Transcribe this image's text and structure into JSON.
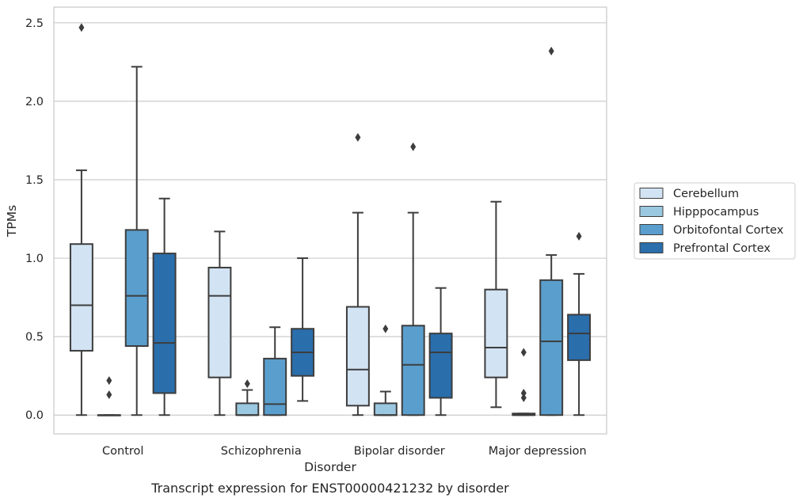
{
  "chart_data": {
    "type": "box",
    "xlabel": "Disorder",
    "ylabel": "TPMs",
    "caption": "Transcript expression for ENST00000421232 by disorder",
    "categories": [
      "Control",
      "Schizophrenia",
      "Bipolar disorder",
      "Major depression"
    ],
    "ylim": [
      -0.12,
      2.6
    ],
    "yticks": [
      0.0,
      0.5,
      1.0,
      1.5,
      2.0,
      2.5
    ],
    "ytick_labels": [
      "0.0",
      "0.5",
      "1.0",
      "1.5",
      "2.0",
      "2.5"
    ],
    "grid": "horizontal",
    "legend_position": "center-right",
    "series": [
      {
        "name": "Cerebellum",
        "color": "#d2e3f3",
        "boxes": [
          {
            "whisker_low": 0.0,
            "q1": 0.41,
            "median": 0.7,
            "q3": 1.09,
            "whisker_high": 1.56,
            "outliers": [
              2.47
            ]
          },
          {
            "whisker_low": 0.0,
            "q1": 0.24,
            "median": 0.76,
            "q3": 0.94,
            "whisker_high": 1.17,
            "outliers": []
          },
          {
            "whisker_low": 0.0,
            "q1": 0.06,
            "median": 0.29,
            "q3": 0.69,
            "whisker_high": 1.29,
            "outliers": [
              1.77
            ]
          },
          {
            "whisker_low": 0.05,
            "q1": 0.24,
            "median": 0.43,
            "q3": 0.8,
            "whisker_high": 1.36,
            "outliers": []
          }
        ]
      },
      {
        "name": "Hipppocampus",
        "color": "#9ac8e0",
        "boxes": [
          {
            "whisker_low": 0.0,
            "q1": 0.0,
            "median": 0.0,
            "q3": 0.0,
            "whisker_high": 0.0,
            "outliers": [
              0.13,
              0.22
            ]
          },
          {
            "whisker_low": 0.0,
            "q1": 0.0,
            "median": 0.0,
            "q3": 0.075,
            "whisker_high": 0.16,
            "outliers": [
              0.2
            ]
          },
          {
            "whisker_low": 0.0,
            "q1": 0.0,
            "median": 0.0,
            "q3": 0.075,
            "whisker_high": 0.15,
            "outliers": [
              0.55
            ]
          },
          {
            "whisker_low": 0.0,
            "q1": 0.0,
            "median": 0.0,
            "q3": 0.01,
            "whisker_high": 0.01,
            "outliers": [
              0.11,
              0.14,
              0.4
            ]
          }
        ]
      },
      {
        "name": "Orbitofontal Cortex",
        "color": "#5a9ecd",
        "boxes": [
          {
            "whisker_low": 0.0,
            "q1": 0.44,
            "median": 0.76,
            "q3": 1.18,
            "whisker_high": 2.22,
            "outliers": []
          },
          {
            "whisker_low": 0.0,
            "q1": 0.0,
            "median": 0.07,
            "q3": 0.36,
            "whisker_high": 0.56,
            "outliers": []
          },
          {
            "whisker_low": 0.0,
            "q1": 0.0,
            "median": 0.32,
            "q3": 0.57,
            "whisker_high": 1.29,
            "outliers": [
              1.71
            ]
          },
          {
            "whisker_low": 0.0,
            "q1": 0.0,
            "median": 0.47,
            "q3": 0.86,
            "whisker_high": 1.02,
            "outliers": [
              2.32
            ]
          }
        ]
      },
      {
        "name": "Prefrontal Cortex",
        "color": "#2a6eac",
        "boxes": [
          {
            "whisker_low": 0.0,
            "q1": 0.14,
            "median": 0.46,
            "q3": 1.03,
            "whisker_high": 1.38,
            "outliers": []
          },
          {
            "whisker_low": 0.09,
            "q1": 0.25,
            "median": 0.4,
            "q3": 0.55,
            "whisker_high": 1.0,
            "outliers": []
          },
          {
            "whisker_low": 0.0,
            "q1": 0.11,
            "median": 0.4,
            "q3": 0.52,
            "whisker_high": 0.81,
            "outliers": []
          },
          {
            "whisker_low": 0.0,
            "q1": 0.35,
            "median": 0.52,
            "q3": 0.64,
            "whisker_high": 0.9,
            "outliers": [
              1.14
            ]
          }
        ]
      }
    ]
  }
}
